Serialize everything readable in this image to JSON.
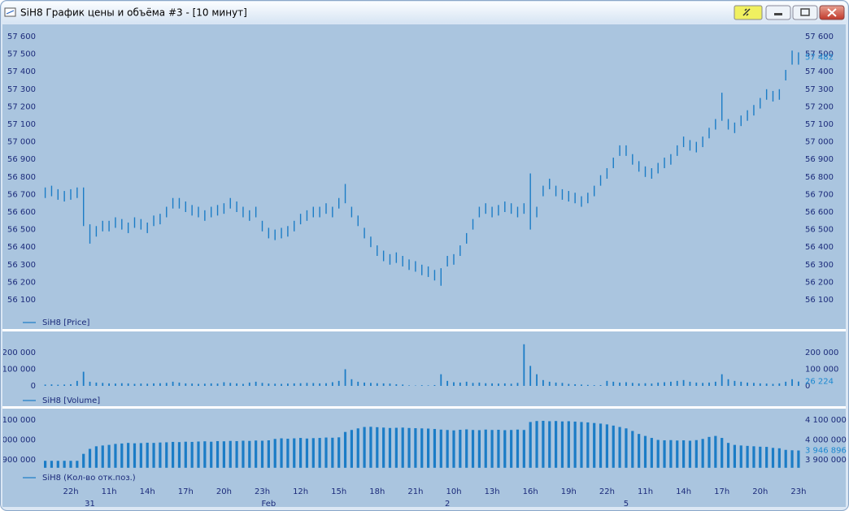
{
  "window": {
    "title": "SiH8 График цены и объёма #3 - [10 минут]"
  },
  "chart_data": [
    {
      "type": "range",
      "series": [
        {
          "name": "SiH8 [Price]",
          "color": "#1b7cc6",
          "high": [
            56740,
            56750,
            56730,
            56720,
            56730,
            56740,
            56740,
            56530,
            56520,
            56550,
            56550,
            56570,
            56560,
            56540,
            56570,
            56560,
            56540,
            56580,
            56590,
            56630,
            56680,
            56680,
            56660,
            56640,
            56630,
            56610,
            56630,
            56640,
            56650,
            56680,
            56660,
            56630,
            56610,
            56630,
            56550,
            56510,
            56500,
            56510,
            56520,
            56550,
            56590,
            56610,
            56630,
            56630,
            56650,
            56630,
            56680,
            56760,
            56630,
            56580,
            56510,
            56460,
            56410,
            56380,
            56360,
            56370,
            56350,
            56330,
            56320,
            56300,
            56290,
            56270,
            56280,
            56350,
            56360,
            56410,
            56480,
            56560,
            56630,
            56650,
            56630,
            56640,
            56660,
            56650,
            56630,
            56650,
            56820,
            56630,
            56750,
            56790,
            56750,
            56730,
            56720,
            56710,
            56690,
            56710,
            56750,
            56810,
            56850,
            56910,
            56980,
            56980,
            56930,
            56890,
            56860,
            56850,
            56880,
            56910,
            56930,
            56980,
            57030,
            57010,
            57000,
            57030,
            57080,
            57130,
            57280,
            57130,
            57110,
            57150,
            57180,
            57210,
            57250,
            57300,
            57290,
            57300,
            57410,
            57520,
            57510
          ],
          "low": [
            56680,
            56690,
            56670,
            56660,
            56670,
            56680,
            56520,
            56420,
            56460,
            56490,
            56490,
            56510,
            56500,
            56480,
            56510,
            56500,
            56480,
            56520,
            56530,
            56570,
            56620,
            56620,
            56600,
            56580,
            56570,
            56550,
            56570,
            56580,
            56590,
            56620,
            56600,
            56570,
            56550,
            56570,
            56490,
            56450,
            56440,
            56450,
            56460,
            56490,
            56530,
            56550,
            56570,
            56570,
            56590,
            56570,
            56620,
            56650,
            56570,
            56520,
            56450,
            56400,
            56350,
            56320,
            56300,
            56310,
            56290,
            56270,
            56260,
            56240,
            56230,
            56210,
            56180,
            56290,
            56300,
            56350,
            56420,
            56500,
            56570,
            56590,
            56570,
            56580,
            56600,
            56590,
            56570,
            56590,
            56500,
            56570,
            56690,
            56730,
            56690,
            56670,
            56660,
            56650,
            56630,
            56650,
            56690,
            56750,
            56790,
            56850,
            56920,
            56920,
            56870,
            56830,
            56800,
            56790,
            56820,
            56850,
            56870,
            56920,
            56970,
            56950,
            56940,
            56970,
            57020,
            57070,
            57120,
            57070,
            57050,
            57090,
            57120,
            57150,
            57190,
            57240,
            57230,
            57240,
            57350,
            57440,
            57440
          ]
        }
      ],
      "ylim": [
        56040,
        57660
      ],
      "yticks": [
        {
          "value": 56100,
          "label": "56 100"
        },
        {
          "value": 56200,
          "label": "56 200"
        },
        {
          "value": 56300,
          "label": "56 300"
        },
        {
          "value": 56400,
          "label": "56 400"
        },
        {
          "value": 56500,
          "label": "56 500"
        },
        {
          "value": 56600,
          "label": "56 600"
        },
        {
          "value": 56700,
          "label": "56 700"
        },
        {
          "value": 56800,
          "label": "56 800"
        },
        {
          "value": 56900,
          "label": "56 900"
        },
        {
          "value": 57000,
          "label": "57 000"
        },
        {
          "value": 57100,
          "label": "57 100"
        },
        {
          "value": 57200,
          "label": "57 200"
        },
        {
          "value": 57300,
          "label": "57 300"
        },
        {
          "value": 57400,
          "label": "57 400"
        },
        {
          "value": 57500,
          "label": "57 500"
        },
        {
          "value": 57600,
          "label": "57 600"
        }
      ],
      "last_value": {
        "value": 57482,
        "label": "57 482"
      }
    },
    {
      "type": "bar",
      "series": [
        {
          "name": "SiH8 [Volume]",
          "color": "#1b7cc6",
          "values": [
            8000,
            9000,
            7000,
            8000,
            10000,
            30000,
            85000,
            25000,
            20000,
            18000,
            15000,
            14000,
            16000,
            15000,
            12000,
            14000,
            13000,
            15000,
            16000,
            18000,
            25000,
            20000,
            15000,
            14000,
            12000,
            13000,
            15000,
            14000,
            22000,
            18000,
            15000,
            12000,
            20000,
            25000,
            18000,
            14000,
            13000,
            12000,
            14000,
            15000,
            16000,
            18000,
            17000,
            15000,
            16000,
            22000,
            30000,
            100000,
            40000,
            25000,
            20000,
            18000,
            16000,
            15000,
            14000,
            10000,
            8000,
            3000,
            2000,
            4000,
            3000,
            5000,
            70000,
            30000,
            22000,
            20000,
            25000,
            18000,
            20000,
            16000,
            15000,
            14000,
            15000,
            13000,
            18000,
            250000,
            120000,
            70000,
            35000,
            25000,
            20000,
            18000,
            12000,
            10000,
            8000,
            6000,
            4000,
            5000,
            30000,
            25000,
            20000,
            22000,
            18000,
            15000,
            16000,
            14000,
            20000,
            22000,
            25000,
            30000,
            35000,
            25000,
            20000,
            18000,
            20000,
            25000,
            70000,
            40000,
            30000,
            25000,
            20000,
            18000,
            15000,
            14000,
            12000,
            15000,
            25000,
            40000,
            26224
          ]
        }
      ],
      "ylim": [
        0,
        300000
      ],
      "yticks": [
        0,
        {
          "value": 100000,
          "label": "100 000"
        },
        {
          "value": 200000,
          "label": "200 000"
        }
      ],
      "last_value": {
        "value": 26224,
        "label": "26 224"
      }
    },
    {
      "type": "bar",
      "series": [
        {
          "name": "SiH8 (Кол-во отк.поз.)",
          "color": "#1b7cc6",
          "values": [
            3895000,
            3895000,
            3895000,
            3895000,
            3895000,
            3895000,
            3930000,
            3955000,
            3968000,
            3972000,
            3975000,
            3980000,
            3982000,
            3985000,
            3983000,
            3984000,
            3986000,
            3985000,
            3987000,
            3988000,
            3990000,
            3989000,
            3991000,
            3990000,
            3992000,
            3993000,
            3991000,
            3994000,
            3993000,
            3995000,
            3994000,
            3996000,
            3995000,
            3997000,
            3996000,
            3998000,
            4005000,
            4008000,
            4006000,
            4008000,
            4010000,
            4007000,
            4009000,
            4010000,
            4012000,
            4011000,
            4013000,
            4040000,
            4050000,
            4058000,
            4065000,
            4066000,
            4064000,
            4062000,
            4060000,
            4061000,
            4062000,
            4060000,
            4059000,
            4058000,
            4057000,
            4055000,
            4052000,
            4050000,
            4048000,
            4051000,
            4053000,
            4050000,
            4049000,
            4052000,
            4050000,
            4051000,
            4049000,
            4050000,
            4052000,
            4050000,
            4090000,
            4095000,
            4096000,
            4094000,
            4095000,
            4093000,
            4094000,
            4092000,
            4090000,
            4088000,
            4085000,
            4082000,
            4078000,
            4072000,
            4065000,
            4058000,
            4045000,
            4030000,
            4020000,
            4010000,
            4000000,
            3998000,
            3999000,
            3997000,
            3998000,
            3996000,
            3999000,
            4005000,
            4015000,
            4020000,
            4010000,
            3985000,
            3975000,
            3972000,
            3970000,
            3968000,
            3966000,
            3965000,
            3960000,
            3958000,
            3950000,
            3948000,
            3946896
          ]
        }
      ],
      "ylim": [
        3860000,
        4110000
      ],
      "yticks": [
        {
          "value": 3900000,
          "label": "3 900 000"
        },
        {
          "value": 4000000,
          "label": "4 000 000"
        },
        {
          "value": 4100000,
          "label": "4 100 000"
        }
      ],
      "last_value": {
        "value": 3946896,
        "label": "3 946 896"
      },
      "categories": [
        null,
        null,
        null,
        null,
        "22h",
        null,
        null,
        null,
        null,
        null,
        "11h",
        null,
        null,
        null,
        null,
        null,
        "14h",
        null,
        null,
        null,
        null,
        null,
        "17h",
        null,
        null,
        null,
        null,
        null,
        "20h",
        null,
        null,
        null,
        null,
        null,
        "23h",
        null,
        null,
        null,
        null,
        null,
        "12h",
        null,
        null,
        null,
        null,
        null,
        "15h",
        null,
        null,
        null,
        null,
        null,
        "18h",
        null,
        null,
        null,
        null,
        null,
        "21h",
        null,
        null,
        null,
        null,
        null,
        "10h",
        null,
        null,
        null,
        null,
        null,
        "13h",
        null,
        null,
        null,
        null,
        null,
        "16h",
        null,
        null,
        null,
        null,
        null,
        "19h",
        null,
        null,
        null,
        null,
        null,
        "22h",
        null,
        null,
        null,
        null,
        null,
        "11h",
        null,
        null,
        null,
        null,
        null,
        "14h",
        null,
        null,
        null,
        null,
        null,
        "17h",
        null,
        null,
        null,
        null,
        null,
        "20h",
        null,
        null,
        null,
        null,
        null,
        "23h"
      ],
      "dates": [
        null,
        null,
        null,
        null,
        null,
        null,
        null,
        "31",
        null,
        null,
        null,
        null,
        null,
        null,
        null,
        null,
        null,
        null,
        null,
        null,
        null,
        null,
        null,
        null,
        null,
        null,
        null,
        null,
        null,
        null,
        null,
        null,
        null,
        null,
        null,
        "Feb",
        null,
        null,
        null,
        null,
        null,
        null,
        null,
        null,
        null,
        null,
        null,
        null,
        null,
        null,
        null,
        null,
        null,
        null,
        null,
        null,
        null,
        null,
        null,
        null,
        null,
        null,
        null,
        "2",
        null,
        null,
        null,
        null,
        null,
        null,
        null,
        null,
        null,
        null,
        null,
        null,
        null,
        null,
        null,
        null,
        null,
        null,
        null,
        null,
        null,
        null,
        null,
        null,
        null,
        null,
        null,
        "5",
        null,
        null,
        null,
        null,
        null,
        null,
        null,
        null,
        null,
        null,
        null,
        null,
        null,
        null,
        null,
        null,
        null,
        null,
        null,
        null,
        null,
        null,
        null,
        null,
        null,
        null,
        null
      ]
    }
  ]
}
